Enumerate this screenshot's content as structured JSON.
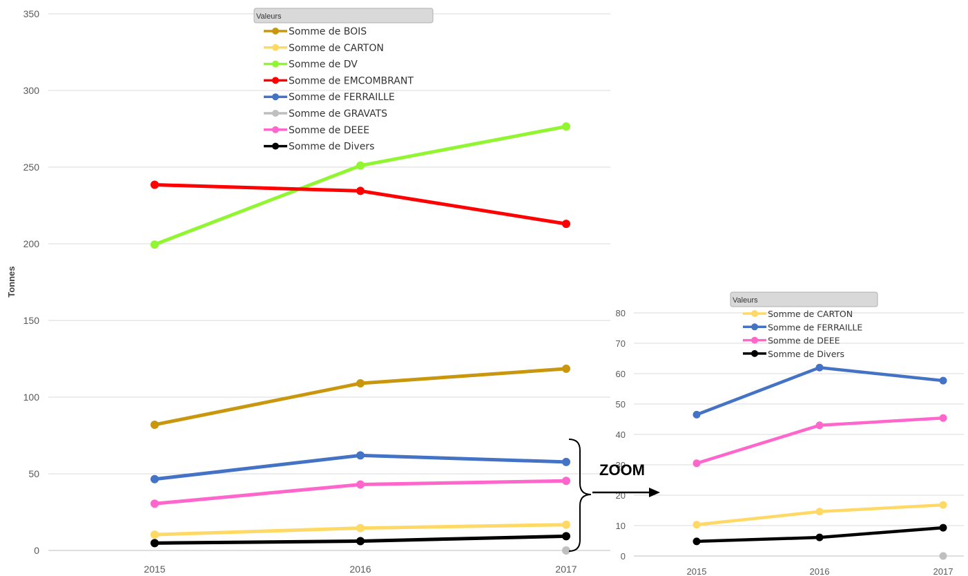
{
  "chart_data": [
    {
      "type": "line",
      "ylabel": "Tonnes",
      "ylim": [
        0,
        350
      ],
      "yticks": [
        "0",
        "50",
        "100",
        "150",
        "200",
        "250",
        "300",
        "350"
      ],
      "categories": [
        "2015",
        "2016",
        "2017"
      ],
      "grid": true,
      "legend_title": "Valeurs",
      "legend_position": "top-center",
      "series": [
        {
          "name": "Somme de BOIS",
          "color": "#C9970E",
          "values": [
            82,
            109,
            118.5
          ]
        },
        {
          "name": "Somme de CARTON",
          "color": "#FFD966",
          "values": [
            10.3,
            14.6,
            16.8
          ]
        },
        {
          "name": "Somme de DV",
          "color": "#92F531",
          "values": [
            199.5,
            251,
            276.5
          ]
        },
        {
          "name": "Somme de EMCOMBRANT",
          "color": "#FF0000",
          "values": [
            238.5,
            234.5,
            213
          ]
        },
        {
          "name": "Somme de FERRAILLE",
          "color": "#4472C4",
          "values": [
            46.5,
            62,
            57.7
          ]
        },
        {
          "name": "Somme de GRAVATS",
          "color": "#BFBFBF",
          "values": [
            null,
            null,
            0
          ]
        },
        {
          "name": "Somme de DEEE",
          "color": "#FF66CC",
          "values": [
            30.5,
            43,
            45.4
          ]
        },
        {
          "name": "Somme de Divers",
          "color": "#000000",
          "values": [
            4.8,
            6.1,
            9.3
          ]
        }
      ]
    },
    {
      "type": "line",
      "ylim": [
        0,
        80
      ],
      "yticks": [
        "0",
        "10",
        "20",
        "30",
        "40",
        "50",
        "60",
        "70",
        "80"
      ],
      "categories": [
        "2015",
        "2016",
        "2017"
      ],
      "grid": true,
      "legend_title": "Valeurs",
      "legend_position": "top-center",
      "series": [
        {
          "name": "Somme de CARTON",
          "color": "#FFD966",
          "values": [
            10.3,
            14.6,
            16.8
          ],
          "in_legend": true
        },
        {
          "name": "Somme de FERRAILLE",
          "color": "#4472C4",
          "values": [
            46.5,
            62,
            57.7
          ],
          "in_legend": true
        },
        {
          "name": "Somme de DEEE",
          "color": "#FF66CC",
          "values": [
            30.5,
            43,
            45.4
          ],
          "in_legend": true
        },
        {
          "name": "Somme de Divers",
          "color": "#000000",
          "values": [
            4.8,
            6.1,
            9.3
          ],
          "in_legend": true
        },
        {
          "name": "Somme de GRAVATS",
          "color": "#BFBFBF",
          "values": [
            null,
            null,
            0
          ],
          "in_legend": false
        }
      ]
    }
  ],
  "annotation": {
    "text": "ZOOM"
  }
}
